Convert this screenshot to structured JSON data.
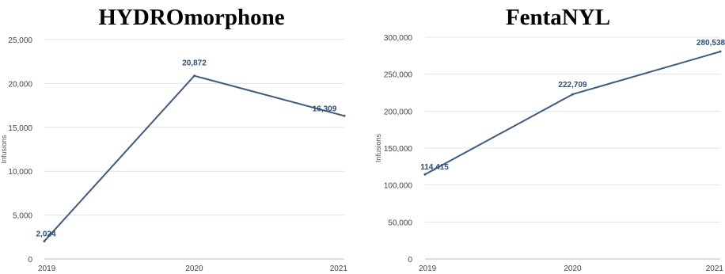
{
  "chart_data": [
    {
      "type": "line",
      "title": "HYDROmorphone",
      "ylabel": "Infusions",
      "xlabel": "",
      "categories": [
        "2019",
        "2020",
        "2021"
      ],
      "values": [
        2024,
        20872,
        16309
      ],
      "value_labels": [
        "2,024",
        "20,872",
        "16,309"
      ],
      "ylim": [
        0,
        25000
      ],
      "yticks": [
        0,
        5000,
        10000,
        15000,
        20000,
        25000
      ],
      "ytick_labels": [
        "0",
        "5,000",
        "10,000",
        "15,000",
        "20,000",
        "25,000"
      ],
      "grid": true,
      "line_color": "#3d5a80"
    },
    {
      "type": "line",
      "title": "FentaNYL",
      "ylabel": "Infusions",
      "xlabel": "",
      "categories": [
        "2019",
        "2020",
        "2021"
      ],
      "values": [
        114415,
        222709,
        280538
      ],
      "value_labels": [
        "114,415",
        "222,709",
        "280,538"
      ],
      "ylim": [
        0,
        300000
      ],
      "yticks": [
        0,
        50000,
        100000,
        150000,
        200000,
        250000,
        300000
      ],
      "ytick_labels": [
        "0",
        "50,000",
        "100,000",
        "150,000",
        "200,000",
        "250,000",
        "300,000"
      ],
      "grid": true,
      "line_color": "#3d5a80"
    }
  ]
}
